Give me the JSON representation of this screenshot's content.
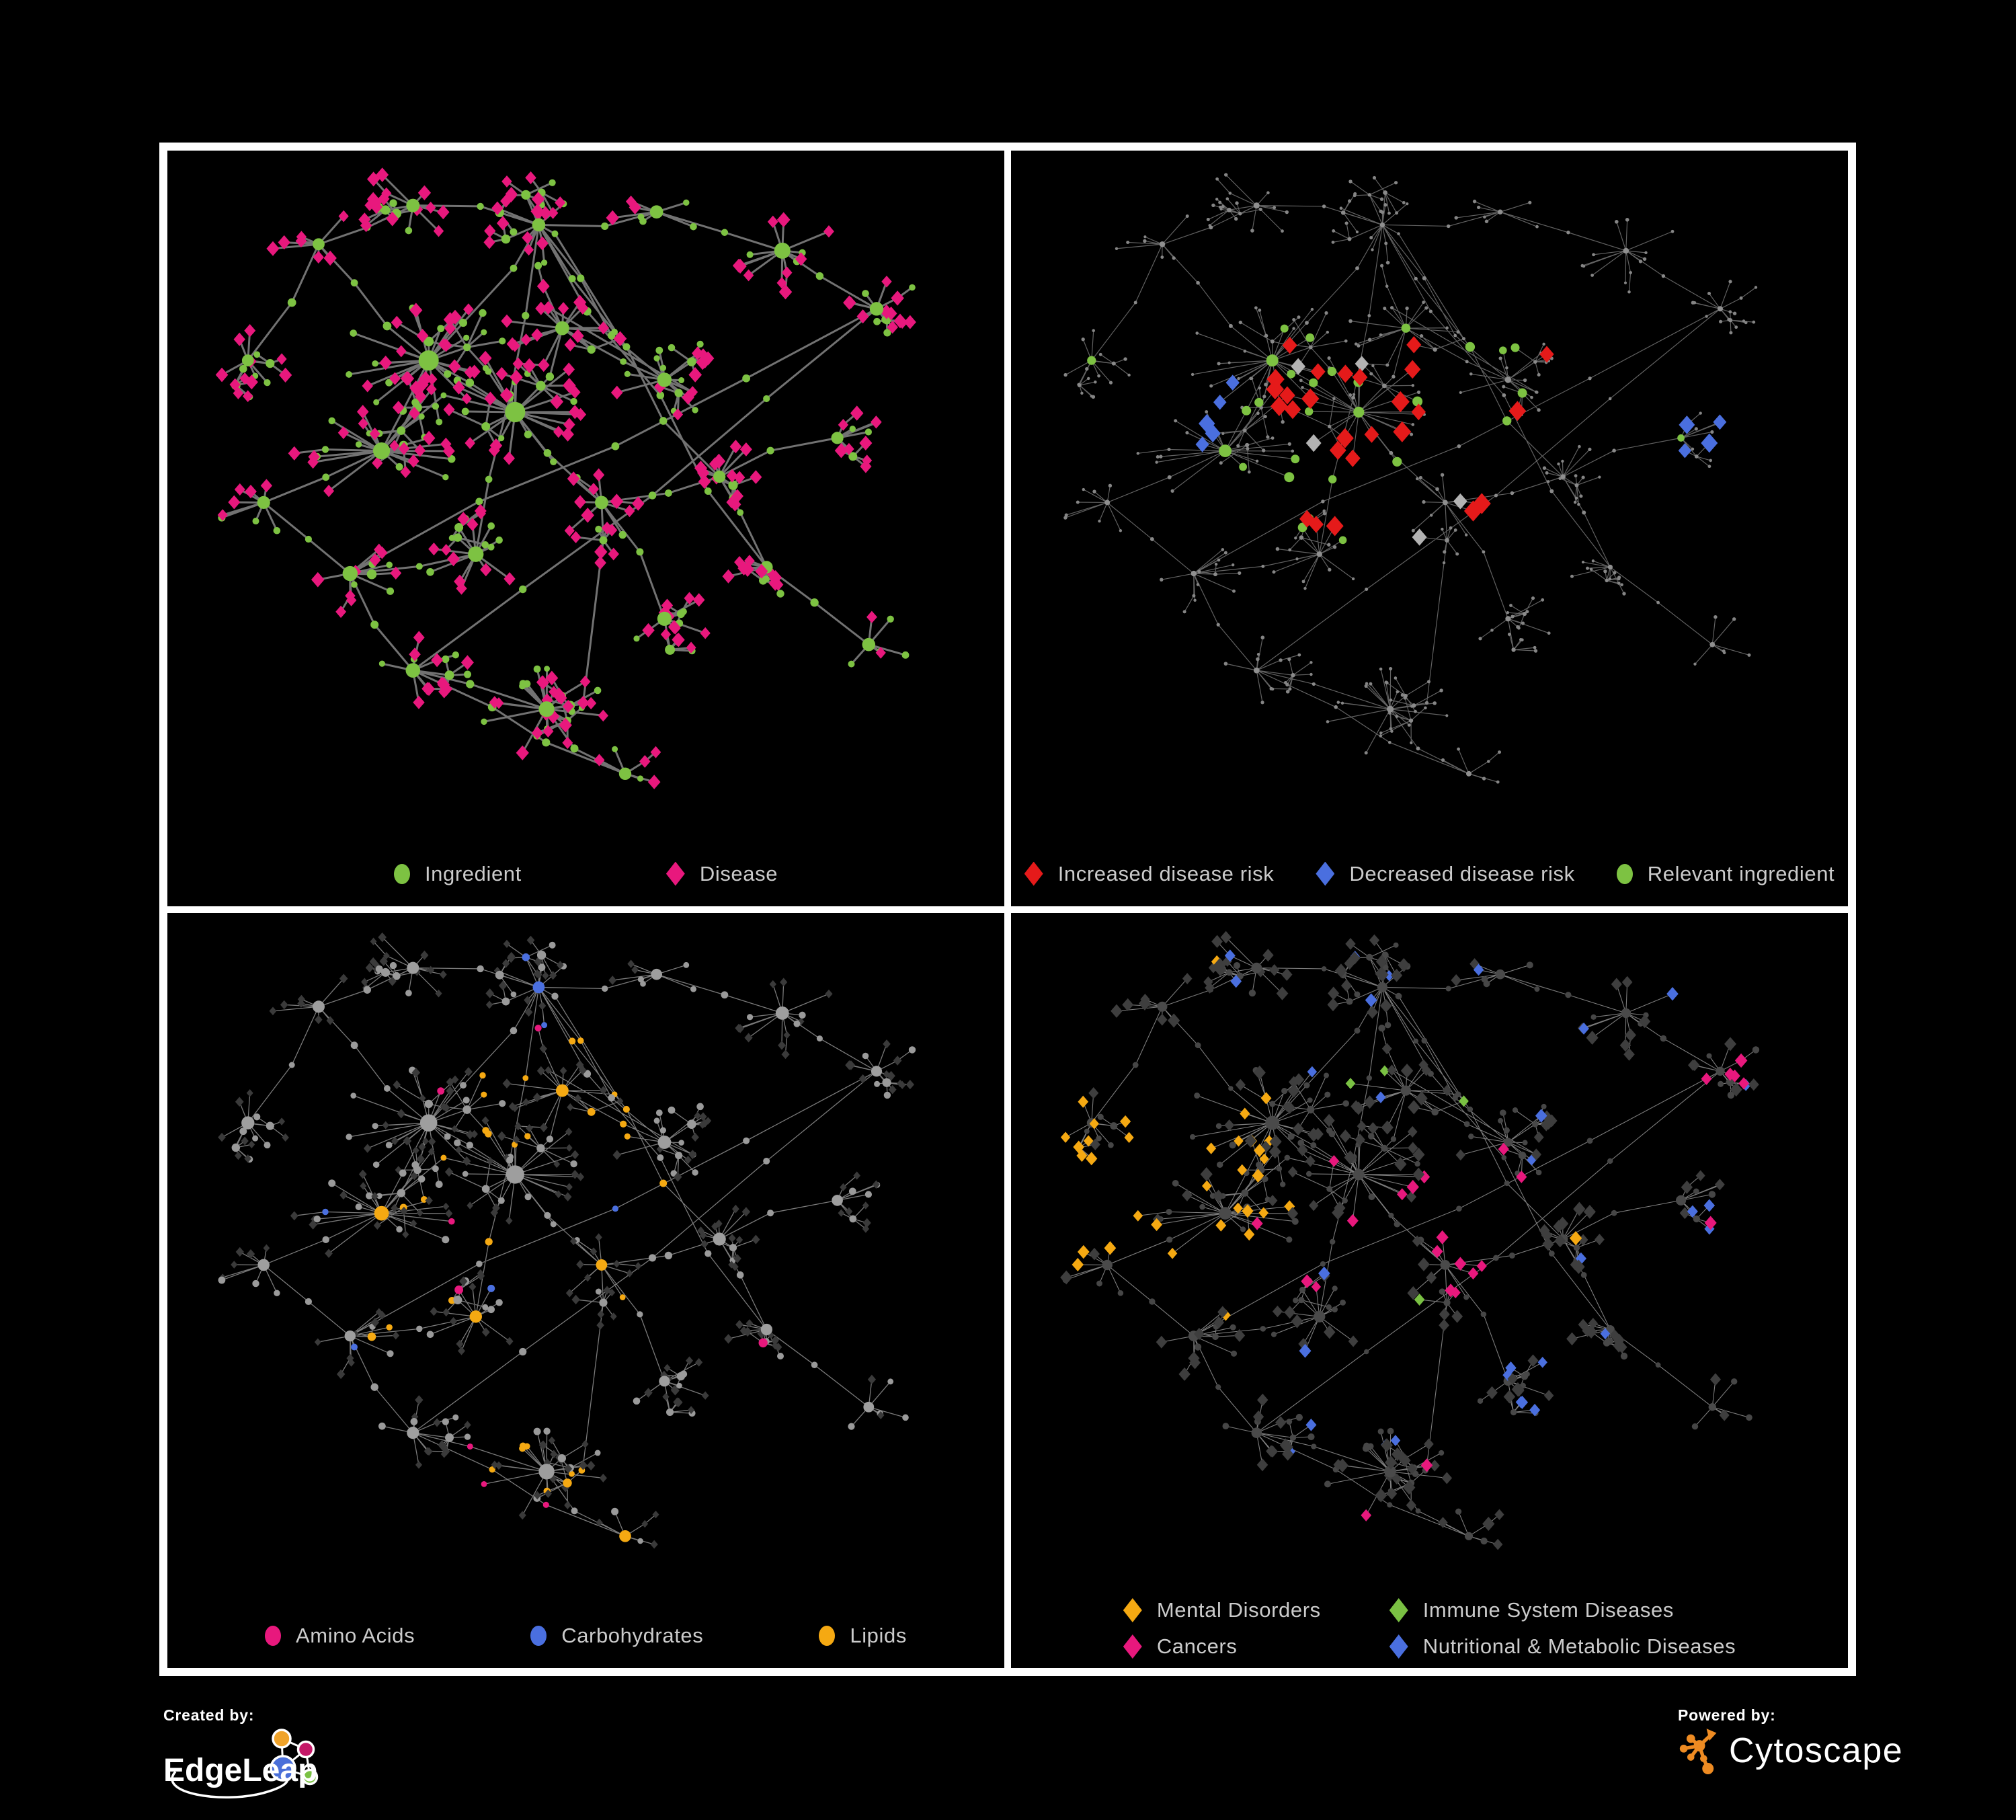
{
  "branding": {
    "created_by": "Created by:",
    "edgeleap": "EdgeLeap",
    "powered_by": "Powered by:",
    "cytoscape": "Cytoscape"
  },
  "chart_data": {
    "type": "network",
    "title": "",
    "description": "Four styled views of the same ingredient-disease association network shown in a 2x2 grid on black, separated by white dividers. Top-left: nodes typed as ingredients (green circles) and diseases (pink diamonds). Top-right: dimmed network highlighting increased disease risk (red diamonds), decreased disease risk (blue diamonds) and relevant ingredients (green circles). Bottom-left: ingredient nutrient classes amino acids (pink), carbohydrates (blue), lipids (orange). Bottom-right: disease categories mental disorders (orange), immune system diseases (green), cancers (pink), nutritional & metabolic diseases (blue).",
    "background": "#000000",
    "divider_color": "#ffffff",
    "legend_text_color": "#cbcbcb",
    "network": {
      "seed": 11,
      "extra_edges": 26,
      "subhub_prob": 0.1,
      "leaf_circle_prob": 0.26,
      "hubs": [
        {
          "x": 0.16,
          "y": 0.12,
          "n": 7,
          "s": 0.055
        },
        {
          "x": 0.28,
          "y": 0.06,
          "n": 9,
          "s": 0.055
        },
        {
          "x": 0.44,
          "y": 0.09,
          "n": 12,
          "s": 0.06
        },
        {
          "x": 0.59,
          "y": 0.07,
          "n": 7,
          "s": 0.05
        },
        {
          "x": 0.75,
          "y": 0.13,
          "n": 12,
          "s": 0.06
        },
        {
          "x": 0.87,
          "y": 0.22,
          "n": 9,
          "s": 0.05
        },
        {
          "x": 0.07,
          "y": 0.3,
          "n": 8,
          "s": 0.05
        },
        {
          "x": 0.3,
          "y": 0.3,
          "n": 26,
          "s": 0.09
        },
        {
          "x": 0.41,
          "y": 0.38,
          "n": 24,
          "s": 0.085
        },
        {
          "x": 0.24,
          "y": 0.44,
          "n": 22,
          "s": 0.08
        },
        {
          "x": 0.47,
          "y": 0.25,
          "n": 15,
          "s": 0.065
        },
        {
          "x": 0.6,
          "y": 0.33,
          "n": 11,
          "s": 0.055
        },
        {
          "x": 0.09,
          "y": 0.52,
          "n": 8,
          "s": 0.05
        },
        {
          "x": 0.2,
          "y": 0.63,
          "n": 10,
          "s": 0.055
        },
        {
          "x": 0.36,
          "y": 0.6,
          "n": 13,
          "s": 0.06
        },
        {
          "x": 0.52,
          "y": 0.52,
          "n": 10,
          "s": 0.055
        },
        {
          "x": 0.67,
          "y": 0.48,
          "n": 9,
          "s": 0.05
        },
        {
          "x": 0.82,
          "y": 0.42,
          "n": 7,
          "s": 0.05
        },
        {
          "x": 0.28,
          "y": 0.78,
          "n": 9,
          "s": 0.05
        },
        {
          "x": 0.45,
          "y": 0.84,
          "n": 20,
          "s": 0.07
        },
        {
          "x": 0.6,
          "y": 0.7,
          "n": 9,
          "s": 0.05
        },
        {
          "x": 0.73,
          "y": 0.62,
          "n": 7,
          "s": 0.045
        },
        {
          "x": 0.86,
          "y": 0.74,
          "n": 6,
          "s": 0.045
        },
        {
          "x": 0.55,
          "y": 0.94,
          "n": 5,
          "s": 0.04
        }
      ]
    },
    "panels": [
      {
        "name": "ingredient-disease",
        "legend_rows": [
          [
            {
              "shape": "circle",
              "color": "#7DC242",
              "label": "Ingredient"
            },
            {
              "shape": "diamond",
              "color": "#E8187D",
              "label": "Disease"
            }
          ]
        ],
        "edge": {
          "color": "#787878",
          "width": 3,
          "opacity": 0.95
        },
        "base": {
          "hub": {
            "shape": "circle",
            "color": "#7DC242",
            "size": 10
          },
          "subhub": {
            "shape": "circle",
            "color": "#7DC242",
            "size": 6.5
          },
          "chain": {
            "shape": "circle",
            "color": "#7DC242",
            "size": 5.5
          },
          "leafCircle": {
            "shape": "circle",
            "color": "#7DC242",
            "size": 5
          },
          "leafDiamond": {
            "shape": "diamond",
            "color": "#E8187D",
            "size": 8.5
          }
        },
        "rules": []
      },
      {
        "name": "disease-risk",
        "legend_rows": [
          [
            {
              "shape": "diamond",
              "color": "#E51A1A",
              "label": "Increased disease risk"
            },
            {
              "shape": "diamond",
              "color": "#4A6FDF",
              "label": "Decreased disease risk"
            },
            {
              "shape": "circle",
              "color": "#7DC242",
              "label": "Relevant ingredient"
            }
          ]
        ],
        "edge": {
          "color": "#6B6B6B",
          "width": 1.2,
          "opacity": 0.9
        },
        "base": {
          "hub": {
            "shape": "circle",
            "color": "#8F8F8F",
            "size": 4
          },
          "subhub": {
            "shape": "circle",
            "color": "#8A8A8A",
            "size": 3
          },
          "chain": {
            "shape": "circle",
            "color": "#8A8A8A",
            "size": 2.6
          },
          "leafCircle": {
            "shape": "circle",
            "color": "#858585",
            "size": 2.4
          },
          "leafDiamond": {
            "shape": "circle",
            "color": "#858585",
            "size": 2.4
          }
        },
        "rules": [
          {
            "on": [
              "leafDiamond",
              "leafCircle"
            ],
            "region": [
              0.3,
              0.26,
              0.62,
              0.56
            ],
            "prob": 0.26,
            "shape": "diamond",
            "color": "#E51A1A",
            "size": 12
          },
          {
            "on": [
              "leafDiamond"
            ],
            "region": [
              0.62,
              0.28,
              0.74,
              0.44
            ],
            "prob": 0.3,
            "shape": "diamond",
            "color": "#E51A1A",
            "size": 12
          },
          {
            "on": [
              "leafDiamond"
            ],
            "region": [
              0.64,
              0.76,
              0.78,
              0.92
            ],
            "prob": 0.45,
            "shape": "diamond",
            "color": "#E51A1A",
            "size": 12
          },
          {
            "on": [
              "leafDiamond"
            ],
            "region": [
              0.78,
              0.32,
              0.9,
              0.46
            ],
            "prob": 0.4,
            "shape": "diamond",
            "color": "#4A6FDF",
            "size": 11
          },
          {
            "on": [
              "leafDiamond",
              "leafCircle"
            ],
            "region": [
              0.16,
              0.3,
              0.26,
              0.44
            ],
            "prob": 0.4,
            "shape": "diamond",
            "color": "#4A6FDF",
            "size": 11
          },
          {
            "on": [
              "leafDiamond",
              "leafCircle"
            ],
            "region": [
              0.24,
              0.26,
              0.62,
              0.58
            ],
            "prob": 0.07,
            "shape": "diamond",
            "color": "#B3B3B3",
            "size": 11
          },
          {
            "on": [
              "hub",
              "subhub",
              "chain",
              "leafCircle"
            ],
            "region": [
              0.18,
              0.22,
              0.64,
              0.58
            ],
            "prob": 0.3,
            "shape": "circle",
            "color": "#7DC242",
            "size": 6.5
          },
          {
            "on": [
              "hub",
              "subhub"
            ],
            "region": [
              0.78,
              0.34,
              0.92,
              0.5
            ],
            "prob": 0.5,
            "shape": "circle",
            "color": "#7DC242",
            "size": 6.5
          },
          {
            "on": [
              "hub",
              "chain",
              "leafCircle"
            ],
            "region": [
              0.02,
              0.3,
              0.14,
              0.52
            ],
            "prob": 0.18,
            "shape": "circle",
            "color": "#7DC242",
            "size": 6
          }
        ]
      },
      {
        "name": "nutrient-classes",
        "legend_rows": [
          [
            {
              "shape": "circle",
              "color": "#E8187D",
              "label": "Amino Acids"
            },
            {
              "shape": "circle",
              "color": "#4A6FDF",
              "label": "Carbohydrates"
            },
            {
              "shape": "circle",
              "color": "#F5A912",
              "label": "Lipids"
            }
          ]
        ],
        "edge": {
          "color": "#8F8F8F",
          "width": 1.3,
          "opacity": 0.85
        },
        "base": {
          "hub": {
            "shape": "circle",
            "color": "#9E9E9E",
            "size": 9
          },
          "subhub": {
            "shape": "circle",
            "color": "#9A9A9A",
            "size": 6
          },
          "chain": {
            "shape": "circle",
            "color": "#9A9A9A",
            "size": 5
          },
          "leafCircle": {
            "shape": "circle",
            "color": "#9A9A9A",
            "size": 4.8
          },
          "leafDiamond": {
            "shape": "diamond",
            "color": "#3A3A3A",
            "size": 5.5
          }
        },
        "rules": [
          {
            "on": [
              "hub",
              "subhub",
              "chain",
              "leafCircle"
            ],
            "region": [
              0.4,
              0.02,
              0.54,
              0.16
            ],
            "prob": 0.3,
            "color": "#4A6FDF"
          },
          {
            "on": [
              "hub",
              "subhub",
              "chain",
              "leafCircle"
            ],
            "region": [
              0.36,
              0.16,
              0.58,
              0.36
            ],
            "prob": 0.75,
            "color": "#F5A912"
          },
          {
            "on": [
              "hub",
              "subhub",
              "chain",
              "leafCircle"
            ],
            "region": [
              0.22,
              0.3,
              0.62,
              0.64
            ],
            "prob": 0.13,
            "color": "#F5A912"
          },
          {
            "on": [
              "hub",
              "subhub",
              "chain",
              "leafCircle"
            ],
            "region": [
              0.38,
              0.76,
              0.54,
              0.92
            ],
            "prob": 0.55,
            "color": "#F5A912"
          },
          {
            "on": [
              "hub",
              "subhub",
              "chain",
              "leafCircle"
            ],
            "region": [
              0,
              0,
              1,
              1
            ],
            "prob": 0.035,
            "color": "#F5A912"
          },
          {
            "on": [
              "hub",
              "subhub",
              "chain",
              "leafCircle"
            ],
            "region": [
              0,
              0,
              1,
              1
            ],
            "prob": 0.015,
            "color": "#4A6FDF"
          },
          {
            "on": [
              "hub",
              "subhub",
              "chain",
              "leafCircle"
            ],
            "region": [
              0,
              0,
              1,
              1
            ],
            "prob": 0.05,
            "color": "#E8187D"
          }
        ]
      },
      {
        "name": "disease-categories",
        "legend_rows": [
          [
            {
              "shape": "diamond",
              "color": "#F5A912",
              "label": "Mental Disorders"
            },
            {
              "shape": "diamond",
              "color": "#7AC143",
              "label": "Immune System Diseases"
            }
          ],
          [
            {
              "shape": "diamond",
              "color": "#E8187D",
              "label": "Cancers"
            },
            {
              "shape": "diamond",
              "color": "#4A6FDF",
              "label": "Nutritional & Metabolic Diseases"
            }
          ]
        ],
        "edge": {
          "color": "#9B9B9B",
          "width": 1.1,
          "opacity": 0.8
        },
        "base": {
          "hub": {
            "shape": "circle",
            "color": "#4A4A4A",
            "size": 7
          },
          "subhub": {
            "shape": "circle",
            "color": "#484848",
            "size": 5
          },
          "chain": {
            "shape": "circle",
            "color": "#464646",
            "size": 4.2
          },
          "leafCircle": {
            "shape": "circle",
            "color": "#464646",
            "size": 4.5
          },
          "leafDiamond": {
            "shape": "diamond",
            "color": "#3E3E3E",
            "size": 8
          }
        },
        "rules": [
          {
            "on": [
              "leafDiamond"
            ],
            "region": [
              0.02,
              0.26,
              0.3,
              0.6
            ],
            "prob": 0.78,
            "color": "#F5A912"
          },
          {
            "on": [
              "leafDiamond"
            ],
            "region": [
              0.22,
              0.02,
              0.36,
              0.14
            ],
            "prob": 0.25,
            "color": "#F5A912"
          },
          {
            "on": [
              "leafDiamond"
            ],
            "region": [
              0.34,
              0.34,
              0.62,
              0.62
            ],
            "prob": 0.45,
            "color": "#E8187D"
          },
          {
            "on": [
              "leafDiamond"
            ],
            "region": [
              0.84,
              0.12,
              0.95,
              0.26
            ],
            "prob": 0.6,
            "color": "#E8187D"
          },
          {
            "on": [
              "leafDiamond"
            ],
            "region": [
              0.6,
              0.06,
              0.96,
              0.52
            ],
            "prob": 0.28,
            "color": "#4A6FDF"
          },
          {
            "on": [
              "leafDiamond"
            ],
            "region": [
              0.28,
              0.62,
              0.48,
              0.8
            ],
            "prob": 0.3,
            "color": "#4A6FDF"
          },
          {
            "on": [
              "leafDiamond"
            ],
            "region": [
              0.52,
              0.6,
              0.74,
              0.8
            ],
            "prob": 0.25,
            "color": "#4A6FDF"
          },
          {
            "on": [
              "leafDiamond"
            ],
            "region": [
              0.44,
              0.0,
              0.62,
              0.12
            ],
            "prob": 0.3,
            "color": "#4A6FDF"
          },
          {
            "on": [
              "leafDiamond"
            ],
            "region": [
              0.3,
              0.2,
              0.7,
              0.7
            ],
            "prob": 0.03,
            "color": "#7AC143"
          },
          {
            "on": [
              "leafDiamond"
            ],
            "region": [
              0,
              0,
              1,
              1
            ],
            "prob": 0.03,
            "color": "#F5A912"
          },
          {
            "on": [
              "leafDiamond"
            ],
            "region": [
              0,
              0,
              1,
              1
            ],
            "prob": 0.025,
            "color": "#E8187D"
          },
          {
            "on": [
              "leafDiamond"
            ],
            "region": [
              0,
              0,
              1,
              1
            ],
            "prob": 0.04,
            "color": "#4A6FDF"
          }
        ]
      }
    ]
  }
}
